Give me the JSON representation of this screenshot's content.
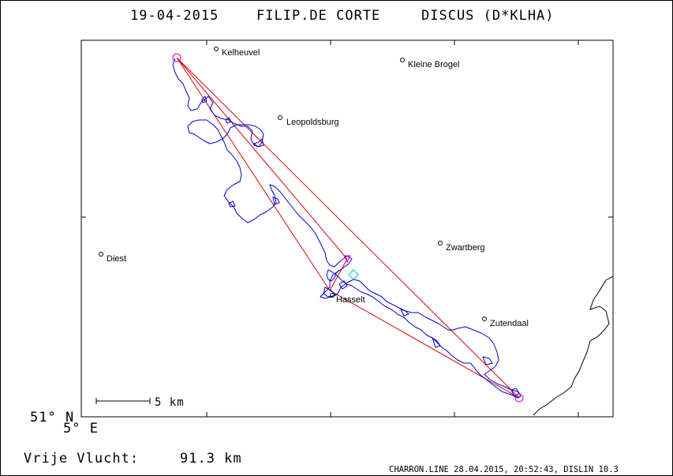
{
  "header": {
    "date": "19-04-2015",
    "pilot": "FILIP.DE CORTE",
    "glider": "DISCUS (D*KLHA)"
  },
  "towns": [
    {
      "name": "Kelheuvel"
    },
    {
      "name": "Kleine Brogel"
    },
    {
      "name": "Leopoldsburg"
    },
    {
      "name": "Diest"
    },
    {
      "name": "Zwartberg"
    },
    {
      "name": "Hasselt"
    },
    {
      "name": "Zutendaal"
    }
  ],
  "scale_bar": {
    "label": "5 km"
  },
  "coords": {
    "lat": "51° N",
    "lon": "5° E"
  },
  "free_flight": {
    "label": "Vrije Vlucht:",
    "distance": "91.3 km"
  },
  "footer": "CHARRON.LINE 28.04.2015, 20:52:43, DISLIN 10.3",
  "colors": {
    "track": "#0000cc",
    "task": "#e00000",
    "turnpoint": "#cc00cc",
    "start": "#00bbee",
    "border": "#000000"
  }
}
